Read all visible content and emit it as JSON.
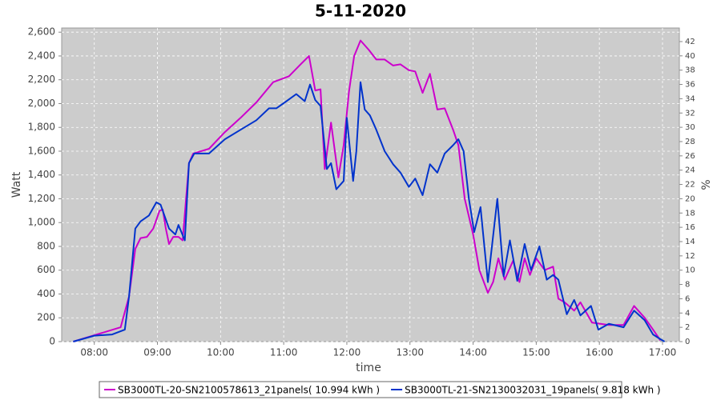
{
  "chart_data": {
    "type": "line",
    "title": "5-11-2020",
    "x_label": "time",
    "y_label": "Watt",
    "y2_label": "%",
    "xlim": [
      "07:29",
      "17:16"
    ],
    "xticks": [
      "08:00",
      "09:00",
      "10:00",
      "11:00",
      "12:00",
      "13:00",
      "14:00",
      "15:00",
      "16:00",
      "17:00"
    ],
    "ylim": [
      0,
      2635
    ],
    "yticks": [
      0,
      200,
      400,
      600,
      800,
      {
        "value": 1000,
        "label": "1,000"
      },
      {
        "value": 1200,
        "label": "1,200"
      },
      {
        "value": 1400,
        "label": "1,400"
      },
      {
        "value": 1600,
        "label": "1,600"
      },
      {
        "value": 1800,
        "label": "1,800"
      },
      {
        "value": 2000,
        "label": "2,000"
      },
      {
        "value": 2200,
        "label": "2,200"
      },
      {
        "value": 2400,
        "label": "2,400"
      },
      {
        "value": 2600,
        "label": "2,600"
      }
    ],
    "y2lim": [
      0,
      43.9
    ],
    "y2ticks": [
      0,
      2,
      4,
      6,
      8,
      10,
      12,
      14,
      16,
      18,
      20,
      22,
      24,
      26,
      28,
      30,
      32,
      34,
      36,
      38,
      40,
      42
    ],
    "grid": true,
    "series": [
      {
        "name": "SB3000TL-20-SN2100578613_21panels( 10.994 kWh )",
        "color": "#cc00cc",
        "x": [
          "07:40",
          "08:25",
          "08:33",
          "08:39",
          "08:44",
          "08:50",
          "08:56",
          "09:02",
          "09:05",
          "09:08",
          "09:11",
          "09:15",
          "09:20",
          "09:24",
          "09:30",
          "09:34",
          "09:49",
          "10:04",
          "10:19",
          "10:34",
          "10:50",
          "11:05",
          "11:16",
          "11:24",
          "11:30",
          "11:35",
          "11:39",
          "11:45",
          "11:52",
          "11:57",
          "12:02",
          "12:07",
          "12:13",
          "12:21",
          "12:28",
          "12:36",
          "12:44",
          "12:51",
          "12:59",
          "13:05",
          "13:12",
          "13:19",
          "13:26",
          "13:33",
          "13:41",
          "13:46",
          "13:52",
          "14:00",
          "14:06",
          "14:14",
          "14:19",
          "14:24",
          "14:30",
          "14:38",
          "14:44",
          "14:49",
          "14:54",
          "15:00",
          "15:08",
          "15:16",
          "15:21",
          "15:27",
          "15:36",
          "15:42",
          "15:53",
          "16:09",
          "16:23",
          "16:33",
          "16:43",
          "16:51",
          "16:58"
        ],
        "values": [
          0,
          120,
          380,
          780,
          870,
          880,
          950,
          1100,
          1110,
          950,
          820,
          880,
          880,
          850,
          1500,
          1580,
          1620,
          1760,
          1880,
          2010,
          2180,
          2230,
          2330,
          2400,
          2110,
          2120,
          1450,
          1840,
          1380,
          1650,
          2100,
          2400,
          2530,
          2450,
          2370,
          2370,
          2320,
          2330,
          2280,
          2270,
          2090,
          2250,
          1950,
          1960,
          1780,
          1650,
          1200,
          900,
          600,
          410,
          500,
          700,
          520,
          680,
          500,
          700,
          560,
          700,
          600,
          630,
          360,
          330,
          260,
          330,
          160,
          140,
          140,
          300,
          200,
          100,
          10
        ]
      },
      {
        "name": "SB3000TL-21-SN2130032031_19panels( 9.818 kWh )",
        "color": "#0033cc",
        "x": [
          "07:40",
          "08:00",
          "08:17",
          "08:29",
          "08:33",
          "08:39",
          "08:44",
          "08:52",
          "08:59",
          "09:03",
          "09:11",
          "09:17",
          "09:20",
          "09:26",
          "09:30",
          "09:35",
          "09:49",
          "10:04",
          "10:19",
          "10:34",
          "10:46",
          "10:53",
          "11:01",
          "11:12",
          "11:20",
          "11:25",
          "11:30",
          "11:35",
          "11:41",
          "11:45",
          "11:50",
          "11:57",
          "12:00",
          "12:06",
          "12:09",
          "12:13",
          "12:17",
          "12:22",
          "12:28",
          "12:36",
          "12:44",
          "12:51",
          "12:59",
          "13:05",
          "13:12",
          "13:19",
          "13:26",
          "13:33",
          "13:41",
          "13:46",
          "13:51",
          "13:56",
          "14:01",
          "14:07",
          "14:14",
          "14:23",
          "14:29",
          "14:35",
          "14:42",
          "14:49",
          "14:55",
          "15:03",
          "15:10",
          "15:16",
          "15:21",
          "15:29",
          "15:36",
          "15:42",
          "15:52",
          "15:59",
          "16:09",
          "16:23",
          "16:33",
          "16:43",
          "16:51",
          "16:58",
          "17:02"
        ],
        "values": [
          0,
          50,
          60,
          100,
          380,
          950,
          1010,
          1060,
          1170,
          1150,
          950,
          900,
          980,
          850,
          1500,
          1580,
          1580,
          1700,
          1780,
          1860,
          1960,
          1960,
          2010,
          2080,
          2020,
          2160,
          2030,
          1980,
          1450,
          1500,
          1280,
          1350,
          1880,
          1350,
          1600,
          2180,
          1950,
          1900,
          1780,
          1600,
          1490,
          1420,
          1300,
          1370,
          1230,
          1490,
          1420,
          1580,
          1650,
          1700,
          1600,
          1200,
          920,
          1130,
          500,
          1200,
          550,
          850,
          510,
          820,
          600,
          800,
          520,
          560,
          520,
          230,
          350,
          220,
          300,
          100,
          150,
          120,
          260,
          180,
          60,
          20,
          0
        ]
      }
    ]
  }
}
